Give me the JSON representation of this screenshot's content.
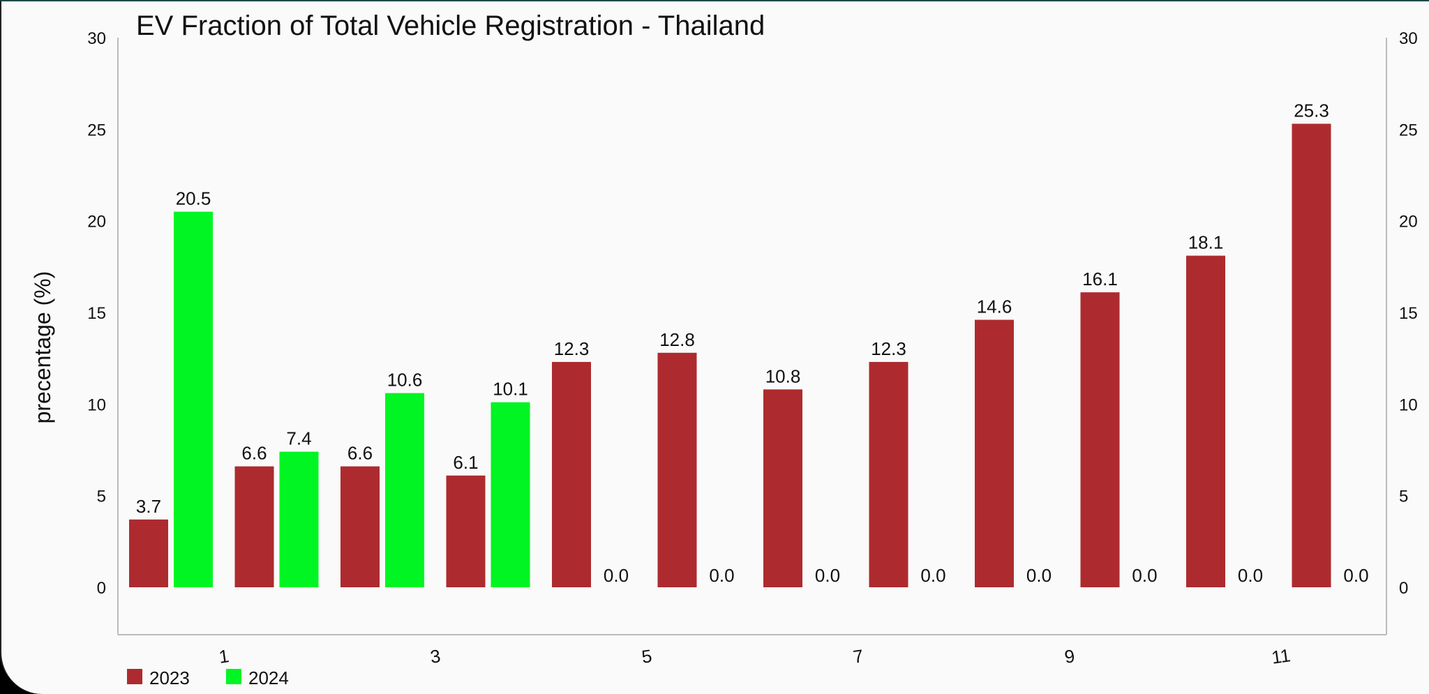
{
  "chart_data": {
    "type": "bar",
    "title": "EV Fraction of Total Vehicle Registration - Thailand",
    "xlabel": "",
    "ylabel": "precentage (%)",
    "ylim": [
      0,
      30
    ],
    "yticks": [
      "0",
      "5",
      "10",
      "15",
      "20",
      "25",
      "30"
    ],
    "categories": [
      1,
      2,
      3,
      4,
      5,
      6,
      7,
      8,
      9,
      10,
      11,
      12
    ],
    "xtick_labels": [
      "1",
      "3",
      "5",
      "7",
      "9",
      "11"
    ],
    "series": [
      {
        "name": "2023",
        "color": "#ad2b2e",
        "values": [
          3.7,
          6.6,
          6.6,
          6.1,
          12.3,
          12.8,
          10.8,
          12.3,
          14.6,
          16.1,
          18.1,
          25.3
        ]
      },
      {
        "name": "2024",
        "color": "#00f522",
        "values": [
          20.5,
          7.4,
          10.6,
          10.1,
          0.0,
          0.0,
          0.0,
          0.0,
          0.0,
          0.0,
          0.0,
          0.0
        ]
      }
    ],
    "legend": "bottom-left",
    "grid": false
  }
}
